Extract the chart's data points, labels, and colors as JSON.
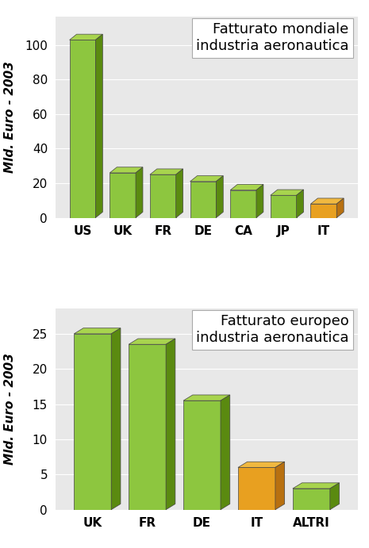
{
  "chart1": {
    "categories": [
      "US",
      "UK",
      "FR",
      "DE",
      "CA",
      "JP",
      "IT"
    ],
    "values": [
      103,
      26,
      25,
      21,
      16,
      13,
      8
    ],
    "colors": [
      "#7ab61e",
      "#7ab61e",
      "#7ab61e",
      "#7ab61e",
      "#7ab61e",
      "#7ab61e",
      "#e8a020"
    ],
    "title_line1": "Fatturato mondiale",
    "title_line2": "industria aeronautica",
    "ylabel": "Mld. Euro - 2003",
    "ylim": [
      0,
      110
    ],
    "yticks": [
      0,
      20,
      40,
      60,
      80,
      100
    ]
  },
  "chart2": {
    "categories": [
      "UK",
      "FR",
      "DE",
      "IT",
      "ALTRI"
    ],
    "values": [
      25,
      23.5,
      15.5,
      6,
      3
    ],
    "colors": [
      "#7ab61e",
      "#7ab61e",
      "#7ab61e",
      "#e8a020",
      "#7ab61e"
    ],
    "title_line1": "Fatturato europeo",
    "title_line2": "industria aeronautica",
    "ylabel": "Mld. Euro - 2003",
    "ylim": [
      0,
      27
    ],
    "yticks": [
      0,
      5,
      10,
      15,
      20,
      25
    ]
  },
  "bar_green_face": "#8dc63f",
  "bar_green_top": "#a8d44e",
  "bar_green_side": "#5a8a10",
  "bar_orange_face": "#e8a020",
  "bar_orange_top": "#f0b840",
  "bar_orange_side": "#b87010",
  "bg_color": "#e8e8e8",
  "title_fontsize": 13,
  "ylabel_fontsize": 11,
  "tick_fontsize": 11
}
